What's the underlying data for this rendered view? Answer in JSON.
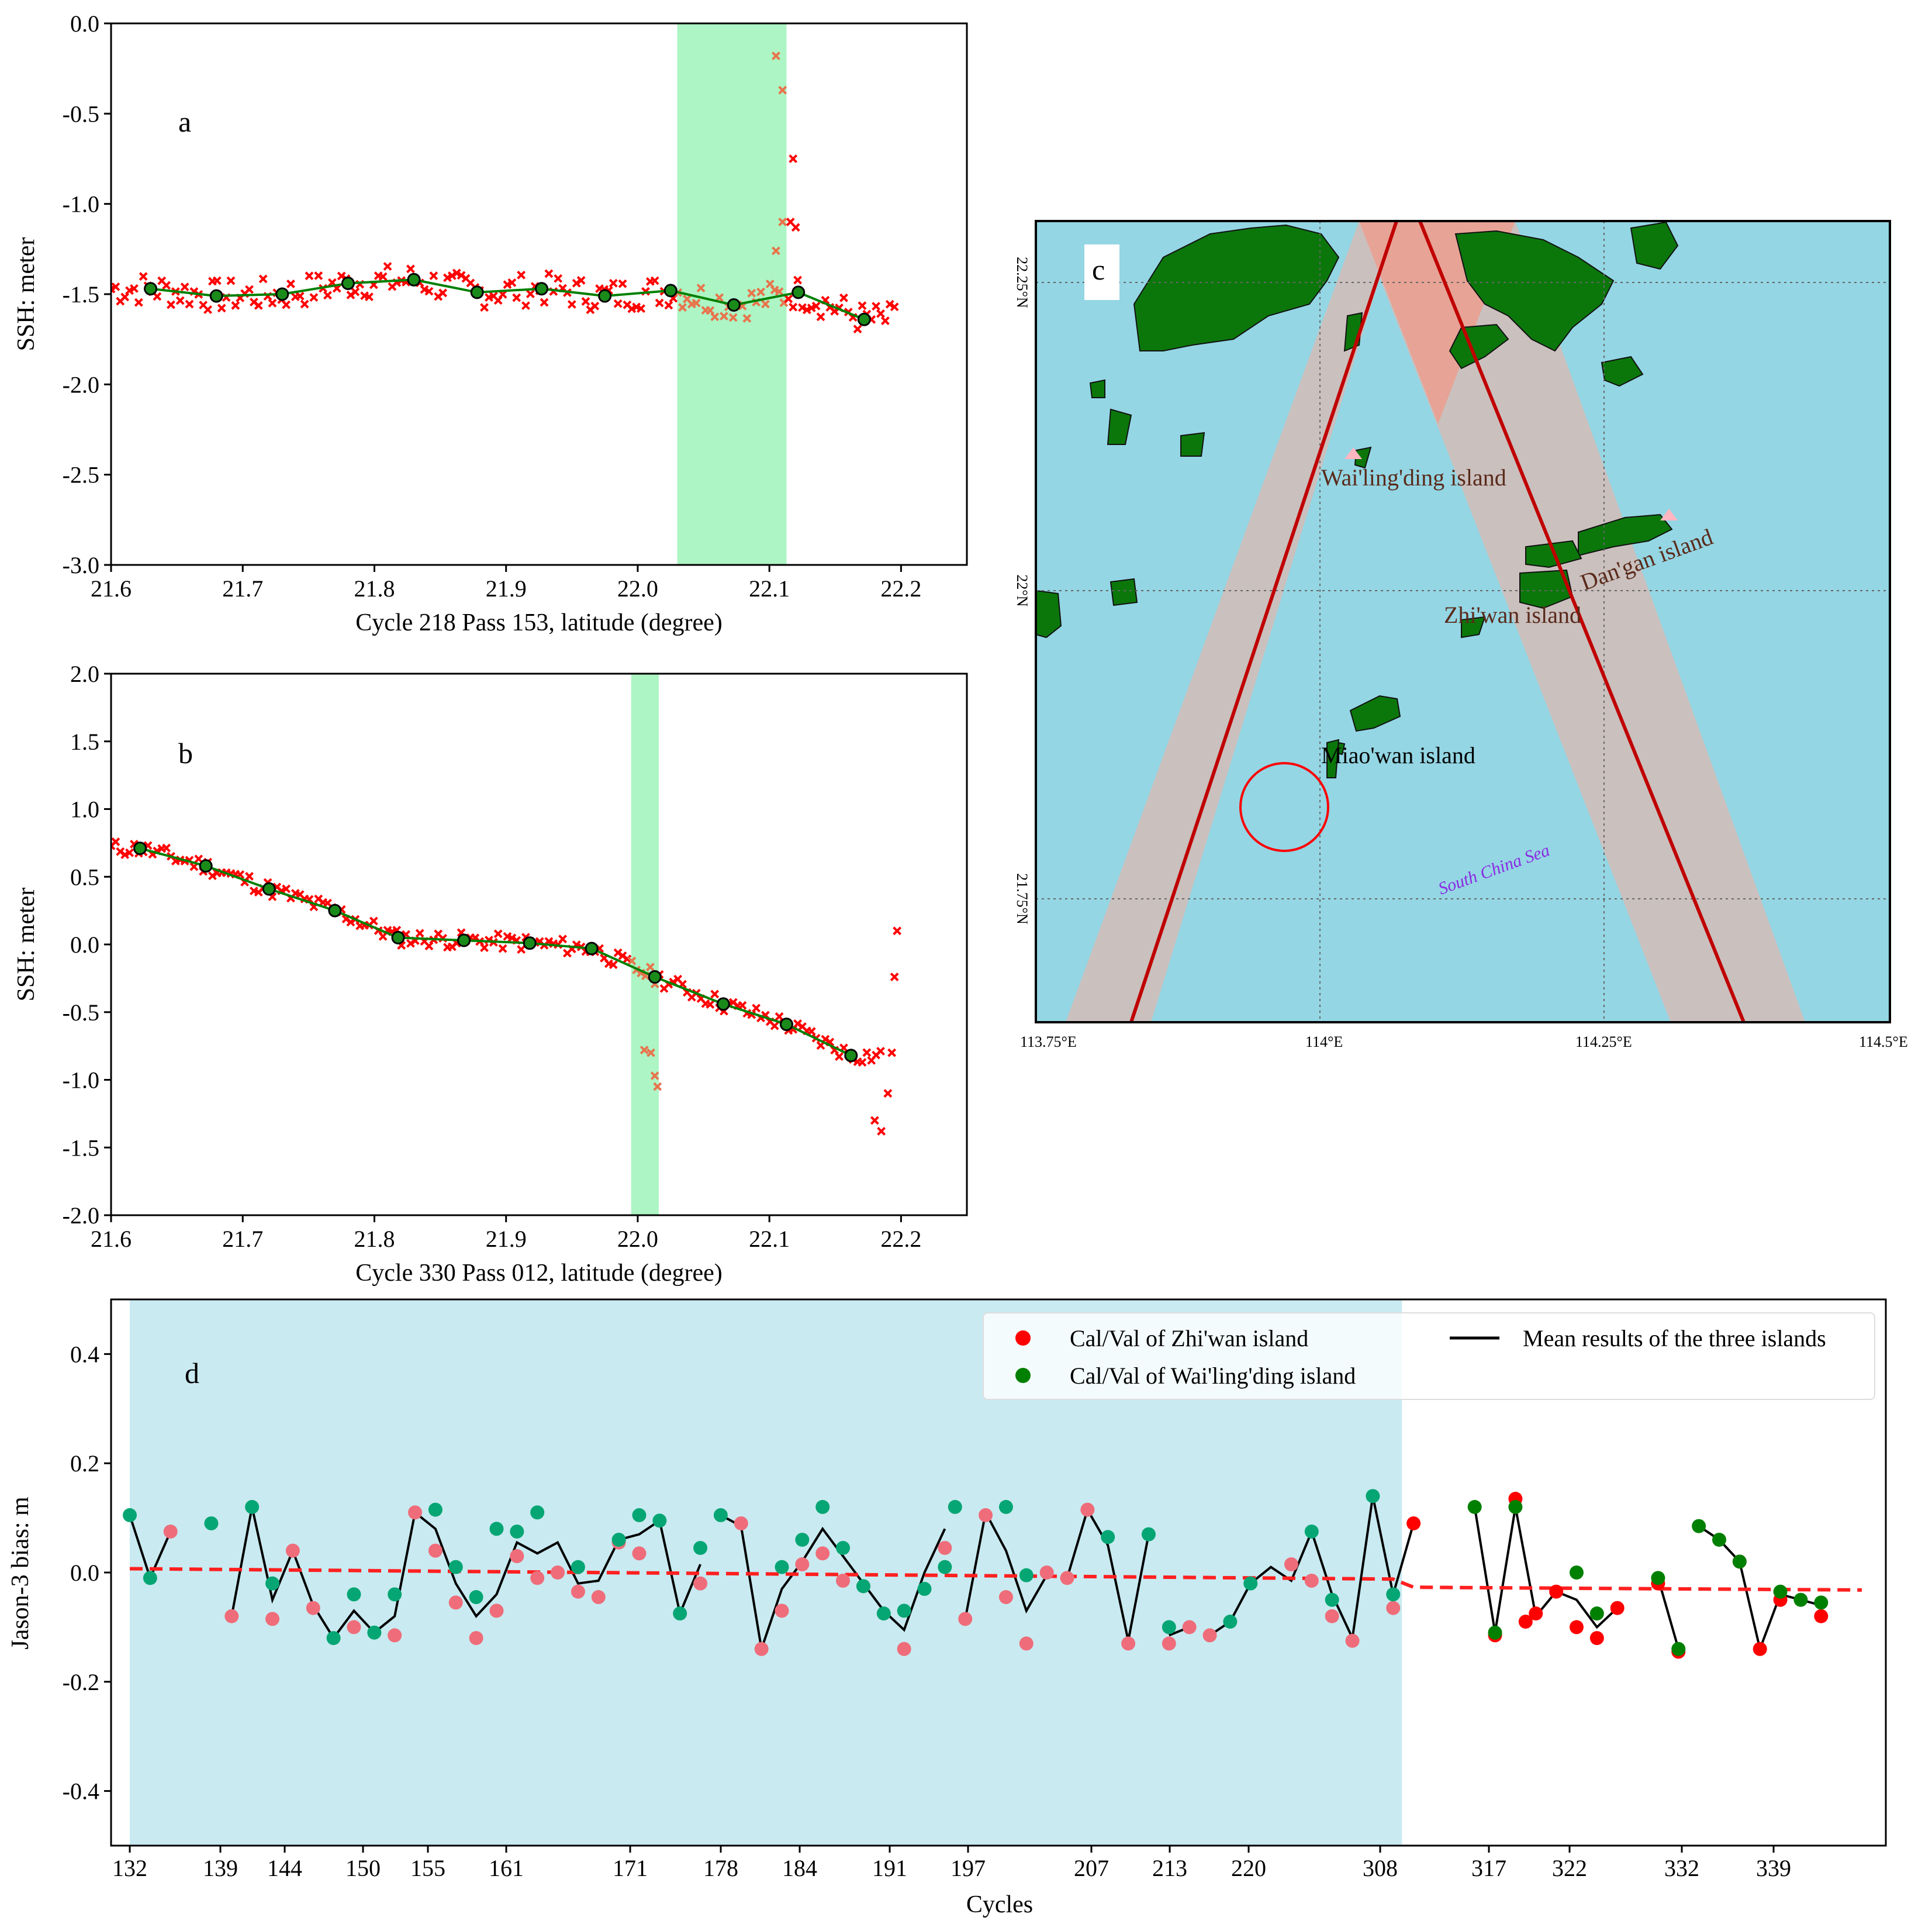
{
  "panel_letters": {
    "a": "a",
    "b": "b",
    "c": "c",
    "d": "d"
  },
  "colors": {
    "red": "#ff0000",
    "green": "#008000",
    "highlight": "#adf5c4",
    "sea": "#94d6e4",
    "land": "#0b770b",
    "swath": "#ccbfbc",
    "track": "#c00000",
    "shade_d": "#c9eaf1",
    "pink_marker": "#ef6d7a",
    "teal_marker": "#05a673"
  },
  "chart_data": [
    {
      "id": "a",
      "type": "scatter",
      "xlabel": "Cycle 218 Pass 153, latitude (degree)",
      "ylabel": "SSH: meter",
      "xlim": [
        21.6,
        22.25
      ],
      "ylim": [
        -3.0,
        0.0
      ],
      "xticks": [
        "21.6",
        "21.7",
        "21.8",
        "21.9",
        "22.0",
        "22.1",
        "22.2"
      ],
      "yticks": [
        "0.0",
        "-0.5",
        "-1.0",
        "-1.5",
        "-2.0",
        "-2.5",
        "-3.0"
      ],
      "highlight_x": [
        22.03,
        22.113
      ],
      "outliers": [
        [
          22.105,
          -0.18
        ],
        [
          22.11,
          -0.37
        ],
        [
          22.118,
          -0.75
        ],
        [
          22.11,
          -1.1
        ],
        [
          22.116,
          -1.1
        ],
        [
          22.12,
          -1.13
        ],
        [
          22.105,
          -1.26
        ]
      ],
      "mean_line": [
        [
          21.63,
          -1.47
        ],
        [
          21.68,
          -1.51
        ],
        [
          21.73,
          -1.5
        ],
        [
          21.78,
          -1.44
        ],
        [
          21.83,
          -1.42
        ],
        [
          21.878,
          -1.49
        ],
        [
          21.927,
          -1.47
        ],
        [
          21.975,
          -1.51
        ],
        [
          22.025,
          -1.48
        ],
        [
          22.073,
          -1.56
        ],
        [
          22.122,
          -1.49
        ],
        [
          22.172,
          -1.64
        ]
      ],
      "scatter_seed": 7,
      "scatter_noise": 0.09
    },
    {
      "id": "b",
      "type": "scatter",
      "xlabel": "Cycle 330 Pass 012, latitude (degree)",
      "ylabel": "SSH: meter",
      "xlim": [
        21.6,
        22.25
      ],
      "ylim": [
        -2.0,
        2.0
      ],
      "xticks": [
        "21.6",
        "21.7",
        "21.8",
        "21.9",
        "22.0",
        "22.1",
        "22.2"
      ],
      "yticks": [
        "2.0",
        "1.5",
        "1.0",
        "0.5",
        "0.0",
        "-0.5",
        "-1.0",
        "-1.5",
        "-2.0"
      ],
      "highlight_x": [
        21.995,
        22.016
      ],
      "outliers": [
        [
          22.197,
          0.1
        ],
        [
          22.195,
          -0.24
        ],
        [
          22.005,
          -0.78
        ],
        [
          22.01,
          -0.8
        ],
        [
          22.013,
          -0.97
        ],
        [
          22.015,
          -1.05
        ],
        [
          22.18,
          -1.3
        ],
        [
          22.185,
          -1.38
        ],
        [
          22.19,
          -1.1
        ],
        [
          22.193,
          -0.8
        ]
      ],
      "mean_line": [
        [
          21.622,
          0.71
        ],
        [
          21.672,
          0.58
        ],
        [
          21.72,
          0.41
        ],
        [
          21.77,
          0.25
        ],
        [
          21.818,
          0.05
        ],
        [
          21.868,
          0.03
        ],
        [
          21.918,
          0.01
        ],
        [
          21.965,
          -0.03
        ],
        [
          22.013,
          -0.24
        ],
        [
          22.065,
          -0.44
        ],
        [
          22.113,
          -0.59
        ],
        [
          22.162,
          -0.82
        ]
      ],
      "scatter_seed": 11,
      "scatter_noise": 0.06
    },
    {
      "id": "c",
      "type": "map",
      "lon_ticks": [
        "113.75°E",
        "114°E",
        "114.25°E",
        "114.5°E"
      ],
      "lat_ticks": [
        "22.25°N",
        "22°N",
        "21.75°N"
      ],
      "labels": {
        "wailingding": "Wai'ling'ding island",
        "dangan": "Dan'gan island",
        "zhiwan": "Zhi'wan island",
        "miaowan": "Miao'wan island",
        "sea": "South China Sea"
      }
    },
    {
      "id": "d",
      "type": "scatter",
      "xlabel": "Cycles",
      "ylabel": "Jason-3 bias: m",
      "ylim": [
        -0.5,
        0.5
      ],
      "yticks": [
        "0.4",
        "0.2",
        "0.0",
        "-0.2",
        "-0.4"
      ],
      "xticks": [
        "132",
        "139",
        "144",
        "150",
        "155",
        "161",
        "171",
        "178",
        "184",
        "191",
        "197",
        "207",
        "213",
        "220",
        "308",
        "317",
        "322",
        "332",
        "339"
      ],
      "legend": {
        "zhiwan": "Cal/Val of Zhi'wan island",
        "wailingding": "Cal/Val of Wai'ling'ding island",
        "mean": "Mean results of the three islands"
      },
      "shade_index_range": [
        0,
        62
      ],
      "trend_line": [
        [
          0,
          0.007
        ],
        [
          62,
          -0.012
        ],
        [
          63,
          -0.027
        ],
        [
          85,
          -0.032
        ]
      ],
      "mean_segments": [
        [
          [
            0,
            0.105
          ],
          [
            1,
            -0.01
          ],
          [
            2,
            0.075
          ]
        ],
        [
          [
            5,
            -0.08
          ],
          [
            6,
            0.12
          ],
          [
            7,
            -0.05
          ],
          [
            8,
            0.04
          ],
          [
            9,
            -0.06
          ],
          [
            10,
            -0.12
          ],
          [
            11,
            -0.07
          ],
          [
            12,
            -0.11
          ],
          [
            13,
            -0.08
          ],
          [
            14,
            0.11
          ],
          [
            15,
            0.08
          ],
          [
            16,
            -0.02
          ],
          [
            17,
            -0.08
          ],
          [
            18,
            -0.04
          ],
          [
            19,
            0.055
          ],
          [
            20,
            0.035
          ],
          [
            21,
            0.055
          ],
          [
            22,
            -0.02
          ],
          [
            23,
            -0.015
          ],
          [
            24,
            0.06
          ],
          [
            25,
            0.07
          ],
          [
            26,
            0.095
          ],
          [
            27,
            -0.075
          ],
          [
            28,
            0.015
          ]
        ],
        [
          [
            29,
            0.105
          ],
          [
            30,
            0.085
          ],
          [
            31,
            -0.14
          ],
          [
            32,
            -0.03
          ],
          [
            33,
            0.02
          ],
          [
            34,
            0.08
          ],
          [
            35,
            0.03
          ],
          [
            36,
            -0.02
          ],
          [
            37,
            -0.07
          ],
          [
            38,
            -0.105
          ],
          [
            39,
            0.0
          ],
          [
            40,
            0.08
          ]
        ],
        [
          [
            41,
            -0.085
          ],
          [
            42,
            0.11
          ],
          [
            43,
            0.04
          ],
          [
            44,
            -0.07
          ],
          [
            45,
            -0.005
          ]
        ],
        [
          [
            46,
            -0.01
          ],
          [
            47,
            0.115
          ],
          [
            48,
            0.05
          ],
          [
            49,
            -0.125
          ],
          [
            50,
            0.07
          ]
        ],
        [
          [
            51,
            -0.115
          ],
          [
            52,
            -0.1
          ]
        ],
        [
          [
            53,
            -0.115
          ],
          [
            54,
            -0.09
          ],
          [
            55,
            -0.02
          ],
          [
            56,
            0.01
          ],
          [
            57,
            -0.015
          ],
          [
            58,
            0.075
          ],
          [
            59,
            -0.04
          ],
          [
            60,
            -0.12
          ],
          [
            61,
            0.14
          ],
          [
            62,
            -0.04
          ],
          [
            63,
            0.09
          ]
        ],
        [
          [
            66,
            0.12
          ],
          [
            67,
            -0.11
          ],
          [
            68,
            0.12
          ],
          [
            69,
            -0.08
          ],
          [
            70,
            -0.035
          ],
          [
            71,
            -0.05
          ],
          [
            72,
            -0.1
          ],
          [
            73,
            -0.065
          ]
        ],
        [
          [
            75,
            -0.01
          ],
          [
            76,
            -0.14
          ]
        ],
        [
          [
            77,
            0.085
          ],
          [
            78,
            0.06
          ],
          [
            79,
            0.02
          ],
          [
            80,
            -0.14
          ],
          [
            81,
            -0.04
          ],
          [
            82,
            -0.05
          ],
          [
            83,
            -0.06
          ]
        ]
      ],
      "zhiwan_points": [
        [
          2,
          0.075
        ],
        [
          5,
          -0.08
        ],
        [
          7,
          -0.085
        ],
        [
          8,
          0.04
        ],
        [
          9,
          -0.065
        ],
        [
          11,
          -0.1
        ],
        [
          13,
          -0.115
        ],
        [
          14,
          0.11
        ],
        [
          15,
          0.04
        ],
        [
          16,
          -0.055
        ],
        [
          17,
          -0.12
        ],
        [
          18,
          -0.07
        ],
        [
          19,
          0.03
        ],
        [
          20,
          -0.01
        ],
        [
          21,
          0.0
        ],
        [
          22,
          -0.035
        ],
        [
          23,
          -0.045
        ],
        [
          24,
          0.055
        ],
        [
          25,
          0.035
        ],
        [
          28,
          -0.02
        ],
        [
          30,
          0.09
        ],
        [
          31,
          -0.14
        ],
        [
          32,
          -0.07
        ],
        [
          33,
          0.015
        ],
        [
          34,
          0.035
        ],
        [
          35,
          -0.015
        ],
        [
          36,
          -0.025
        ],
        [
          38,
          -0.14
        ],
        [
          40,
          0.045
        ],
        [
          41,
          -0.085
        ],
        [
          42,
          0.105
        ],
        [
          43,
          -0.045
        ],
        [
          44,
          -0.13
        ],
        [
          45,
          0.0
        ],
        [
          46,
          -0.01
        ],
        [
          47,
          0.115
        ],
        [
          49,
          -0.13
        ],
        [
          51,
          -0.13
        ],
        [
          52,
          -0.1
        ],
        [
          53,
          -0.115
        ],
        [
          57,
          0.015
        ],
        [
          58,
          -0.015
        ],
        [
          59,
          -0.08
        ],
        [
          60,
          -0.125
        ],
        [
          62,
          -0.065
        ],
        [
          63,
          0.09
        ],
        [
          67,
          -0.115
        ],
        [
          68,
          0.135
        ],
        [
          68.5,
          -0.09
        ],
        [
          69,
          -0.075
        ],
        [
          70,
          -0.035
        ],
        [
          71,
          -0.1
        ],
        [
          72,
          -0.12
        ],
        [
          73,
          -0.065
        ],
        [
          75,
          -0.02
        ],
        [
          76,
          -0.145
        ],
        [
          79,
          0.02
        ],
        [
          80,
          -0.14
        ],
        [
          81,
          -0.05
        ],
        [
          83,
          -0.08
        ]
      ],
      "wailingding_points": [
        [
          0,
          0.105
        ],
        [
          1,
          -0.01
        ],
        [
          4,
          0.09
        ],
        [
          6,
          0.12
        ],
        [
          7,
          -0.02
        ],
        [
          10,
          -0.12
        ],
        [
          11,
          -0.04
        ],
        [
          12,
          -0.11
        ],
        [
          13,
          -0.04
        ],
        [
          15,
          0.115
        ],
        [
          16,
          0.01
        ],
        [
          17,
          -0.045
        ],
        [
          18,
          0.08
        ],
        [
          19,
          0.075
        ],
        [
          20,
          0.11
        ],
        [
          22,
          0.01
        ],
        [
          24,
          0.06
        ],
        [
          25,
          0.105
        ],
        [
          26,
          0.095
        ],
        [
          27,
          -0.075
        ],
        [
          28,
          0.045
        ],
        [
          29,
          0.105
        ],
        [
          32,
          0.01
        ],
        [
          33,
          0.06
        ],
        [
          34,
          0.12
        ],
        [
          35,
          0.045
        ],
        [
          36,
          -0.025
        ],
        [
          37,
          -0.075
        ],
        [
          38,
          -0.07
        ],
        [
          39,
          -0.03
        ],
        [
          40,
          0.01
        ],
        [
          40.5,
          0.12
        ],
        [
          43,
          0.12
        ],
        [
          44,
          -0.005
        ],
        [
          48,
          0.065
        ],
        [
          50,
          0.07
        ],
        [
          51,
          -0.1
        ],
        [
          54,
          -0.09
        ],
        [
          55,
          -0.02
        ],
        [
          58,
          0.075
        ],
        [
          59,
          -0.05
        ],
        [
          61,
          0.14
        ],
        [
          62,
          -0.04
        ],
        [
          66,
          0.12
        ],
        [
          67,
          -0.11
        ],
        [
          68,
          0.12
        ],
        [
          71,
          0.0
        ],
        [
          72,
          -0.075
        ],
        [
          75,
          -0.01
        ],
        [
          76,
          -0.14
        ],
        [
          77,
          0.085
        ],
        [
          78,
          0.06
        ],
        [
          79,
          0.02
        ],
        [
          81,
          -0.035
        ],
        [
          82,
          -0.05
        ],
        [
          83,
          -0.055
        ]
      ]
    }
  ]
}
